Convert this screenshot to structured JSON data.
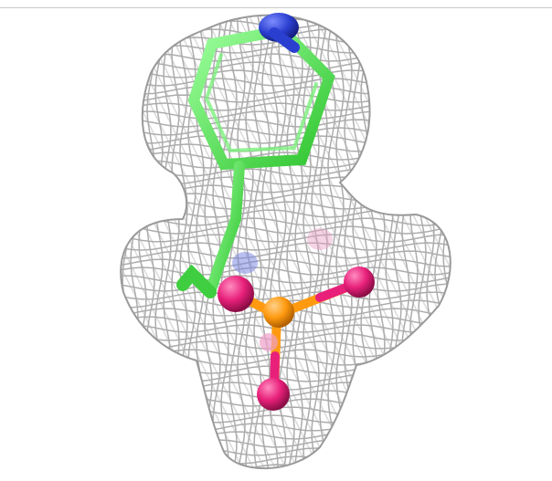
{
  "scene": {
    "background_color": "#ffffff",
    "mesh_color": "#a8a8a8",
    "carbon_color": "#4df04d",
    "nitrogen_color": "#2a3fd0",
    "oxygen_color": "#e8207a",
    "phosphorus_color": "#ff9a10"
  }
}
